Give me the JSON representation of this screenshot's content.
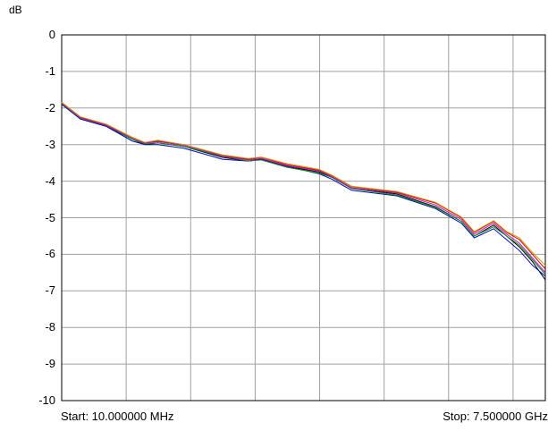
{
  "chart_data": {
    "type": "line",
    "ylabel": "dB",
    "ylim": [
      -10,
      0
    ],
    "y_ticks": [
      "0",
      "-1",
      "-2",
      "-3",
      "-4",
      "-5",
      "-6",
      "-7",
      "-8",
      "-9",
      "-10"
    ],
    "xlim": [
      10,
      7500
    ],
    "x_unit": "MHz",
    "grid": true,
    "start_label": "Start: 10.000000 MHz",
    "stop_label": "Stop: 7.500000 GHz",
    "series": [
      {
        "color": "#000000",
        "x": [
          10,
          300,
          700,
          1100,
          1300,
          1500,
          1900,
          2200,
          2500,
          2900,
          3100,
          3500,
          4000,
          4200,
          4500,
          5200,
          5800,
          6200,
          6400,
          6700,
          6900,
          7100,
          7300,
          7500
        ],
        "y": [
          -1.85,
          -2.3,
          -2.5,
          -2.85,
          -3.0,
          -2.95,
          -3.05,
          -3.2,
          -3.35,
          -3.45,
          -3.4,
          -3.6,
          -3.75,
          -3.9,
          -4.2,
          -4.35,
          -4.7,
          -5.1,
          -5.5,
          -5.2,
          -5.5,
          -5.8,
          -6.2,
          -6.7
        ]
      },
      {
        "color": "#cc0000",
        "x": [
          10,
          300,
          700,
          1100,
          1300,
          1500,
          1900,
          2200,
          2500,
          2900,
          3100,
          3500,
          4000,
          4200,
          4500,
          5200,
          5800,
          6200,
          6400,
          6700,
          6900,
          7100,
          7300,
          7500
        ],
        "y": [
          -1.85,
          -2.25,
          -2.45,
          -2.8,
          -2.95,
          -2.9,
          -3.0,
          -3.15,
          -3.3,
          -3.4,
          -3.35,
          -3.55,
          -3.7,
          -3.85,
          -4.15,
          -4.3,
          -4.6,
          -5.0,
          -5.4,
          -5.1,
          -5.4,
          -5.6,
          -6.0,
          -6.4
        ]
      },
      {
        "color": "#0000cc",
        "x": [
          10,
          300,
          700,
          1100,
          1300,
          1500,
          1900,
          2200,
          2500,
          2900,
          3100,
          3500,
          4000,
          4200,
          4500,
          5200,
          5800,
          6200,
          6400,
          6700,
          6900,
          7100,
          7300,
          7500
        ],
        "y": [
          -1.9,
          -2.3,
          -2.5,
          -2.9,
          -3.0,
          -3.0,
          -3.1,
          -3.25,
          -3.4,
          -3.45,
          -3.4,
          -3.6,
          -3.8,
          -3.95,
          -4.25,
          -4.4,
          -4.75,
          -5.15,
          -5.55,
          -5.3,
          -5.6,
          -5.9,
          -6.3,
          -6.6
        ]
      },
      {
        "color": "#009900",
        "x": [
          10,
          300,
          700,
          1100,
          1300,
          1500,
          1900,
          2200,
          2500,
          2900,
          3100,
          3500,
          4000,
          4200,
          4500,
          5200,
          5800,
          6200,
          6400,
          6700,
          6900,
          7100,
          7300,
          7500
        ],
        "y": [
          -1.88,
          -2.28,
          -2.48,
          -2.85,
          -2.98,
          -2.95,
          -3.05,
          -3.18,
          -3.32,
          -3.45,
          -3.42,
          -3.62,
          -3.78,
          -3.9,
          -4.2,
          -4.38,
          -4.72,
          -5.1,
          -5.5,
          -5.25,
          -5.5,
          -5.75,
          -6.15,
          -6.55
        ]
      },
      {
        "color": "#cc00cc",
        "x": [
          10,
          300,
          700,
          1100,
          1300,
          1500,
          1900,
          2200,
          2500,
          2900,
          3100,
          3500,
          4000,
          4200,
          4500,
          5200,
          5800,
          6200,
          6400,
          6700,
          6900,
          7100,
          7300,
          7500
        ],
        "y": [
          -1.86,
          -2.27,
          -2.47,
          -2.82,
          -2.96,
          -2.92,
          -3.02,
          -3.16,
          -3.31,
          -3.42,
          -3.38,
          -3.58,
          -3.72,
          -3.88,
          -4.18,
          -4.32,
          -4.65,
          -5.05,
          -5.45,
          -5.15,
          -5.45,
          -5.7,
          -6.1,
          -6.5
        ]
      },
      {
        "color": "#cc9900",
        "x": [
          10,
          300,
          700,
          1100,
          1300,
          1500,
          1900,
          2200,
          2500,
          2900,
          3100,
          3500,
          4000,
          4200,
          4500,
          5200,
          5800,
          6200,
          6400,
          6700,
          6900,
          7100,
          7300,
          7500
        ],
        "y": [
          -1.84,
          -2.24,
          -2.44,
          -2.8,
          -2.94,
          -2.88,
          -3.0,
          -3.14,
          -3.28,
          -3.38,
          -3.34,
          -3.52,
          -3.68,
          -3.84,
          -4.14,
          -4.28,
          -4.58,
          -4.98,
          -5.38,
          -5.08,
          -5.38,
          -5.55,
          -5.95,
          -6.3
        ]
      }
    ]
  }
}
